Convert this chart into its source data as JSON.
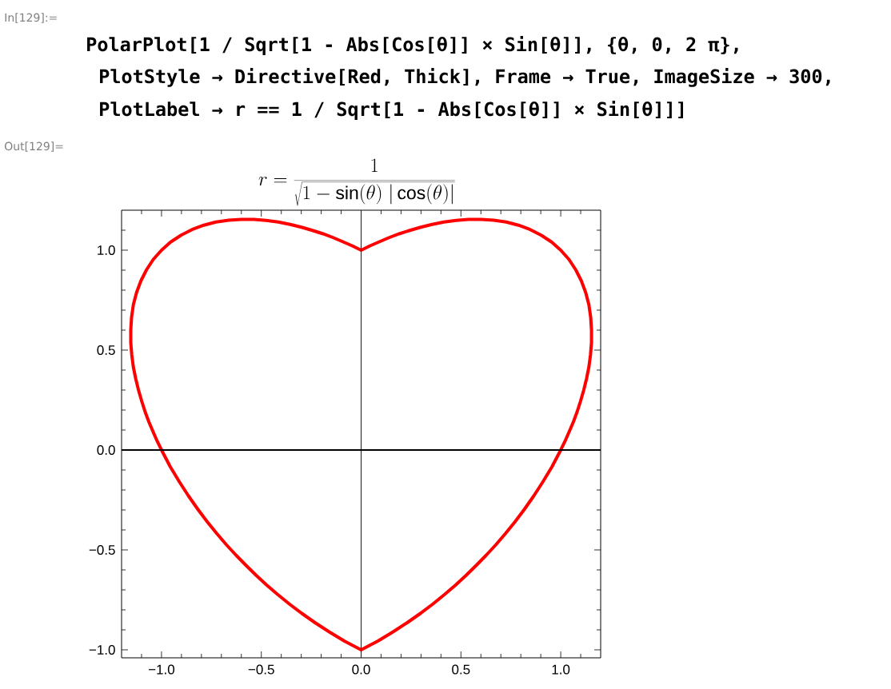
{
  "chart_data": {
    "type": "line",
    "title": "r = \\frac{1}{\\sqrt{1 - \\sin(\\theta)\\;|\\cos(\\theta)|}}",
    "annotations": [
      "In[129]:=",
      "PolarPlot[1 / Sqrt[1 - Abs[Cos[θ]] × Sin[θ]], {θ, 0, 2 π},",
      "PlotStyle → Directive[Red, Thick], Frame → True, ImageSize → 300,",
      "PlotLabel → r == 1 / Sqrt[1 - Abs[Cos[θ]] × Sin[θ]]]",
      "Out[129]="
    ],
    "series": [
      {
        "color": "#ff0000",
        "x": [
          1.0,
          1.022,
          1.042,
          1.063,
          1.082,
          1.099,
          1.115,
          1.129,
          1.141,
          1.149,
          1.154,
          1.154,
          1.15,
          1.141,
          1.125,
          1.103,
          1.075,
          1.041,
          1.0,
          0.954,
          0.902,
          0.847,
          0.788,
          0.727,
          0.664,
          0.601,
          0.538,
          0.476,
          0.415,
          0.356,
          0.299,
          0.244,
          0.191,
          0.14,
          0.091,
          0.045,
          0.0,
          -0.045,
          -0.091,
          -0.14,
          -0.191,
          -0.244,
          -0.299,
          -0.356,
          -0.415,
          -0.476,
          -0.538,
          -0.601,
          -0.664,
          -0.727,
          -0.788,
          -0.847,
          -0.902,
          -0.954,
          -1.0,
          -1.041,
          -1.075,
          -1.103,
          -1.125,
          -1.141,
          -1.15,
          -1.154,
          -1.154,
          -1.149,
          -1.141,
          -1.129,
          -1.115,
          -1.099,
          -1.082,
          -1.063,
          -1.042,
          -1.022,
          -1.0,
          -0.956,
          -0.91,
          -0.864,
          -0.817,
          -0.771,
          -0.723,
          -0.676,
          -0.627,
          -0.577,
          -0.526,
          -0.473,
          -0.418,
          -0.359,
          -0.298,
          -0.231,
          -0.16,
          -0.084,
          0.0,
          0.084,
          0.16,
          0.231,
          0.298,
          0.359,
          0.418,
          0.473,
          0.526,
          0.577,
          0.627,
          0.676,
          0.723,
          0.771,
          0.817,
          0.864,
          0.91,
          0.956,
          1.0,
          1.022
        ],
        "values": [
          0.0,
          0.045,
          0.091,
          0.14,
          0.191,
          0.244,
          0.299,
          0.356,
          0.415,
          0.476,
          0.538,
          0.601,
          0.664,
          0.727,
          0.788,
          0.847,
          0.902,
          0.954,
          1.0,
          1.041,
          1.075,
          1.103,
          1.125,
          1.141,
          1.15,
          1.154,
          1.154,
          1.149,
          1.141,
          1.129,
          1.115,
          1.099,
          1.082,
          1.063,
          1.042,
          1.022,
          1.0,
          1.022,
          1.042,
          1.063,
          1.082,
          1.099,
          1.115,
          1.129,
          1.141,
          1.149,
          1.154,
          1.154,
          1.15,
          1.141,
          1.125,
          1.103,
          1.075,
          1.041,
          1.0,
          0.954,
          0.902,
          0.847,
          0.788,
          0.727,
          0.664,
          0.601,
          0.538,
          0.476,
          0.415,
          0.356,
          0.299,
          0.244,
          0.191,
          0.14,
          0.091,
          0.045,
          0.0,
          -0.084,
          -0.16,
          -0.231,
          -0.298,
          -0.359,
          -0.418,
          -0.473,
          -0.526,
          -0.577,
          -0.627,
          -0.676,
          -0.723,
          -0.771,
          -0.817,
          -0.864,
          -0.91,
          -0.956,
          -1.0,
          -0.956,
          -0.91,
          -0.864,
          -0.817,
          -0.771,
          -0.723,
          -0.676,
          -0.627,
          -0.577,
          -0.526,
          -0.473,
          -0.418,
          -0.359,
          -0.298,
          -0.231,
          -0.16,
          -0.084,
          0.0,
          0.045
        ]
      }
    ],
    "line_style": "solid",
    "xlim": [
      -1.2,
      1.2
    ],
    "ylim": [
      -1.04,
      1.2
    ],
    "xticks": [
      {
        "value": -1.1,
        "label": null
      },
      {
        "value": -1.0,
        "label": "−1.0"
      },
      {
        "value": -0.9,
        "label": null
      },
      {
        "value": -0.8,
        "label": null
      },
      {
        "value": -0.7,
        "label": null
      },
      {
        "value": -0.6,
        "label": null
      },
      {
        "value": -0.5,
        "label": "−0.5"
      },
      {
        "value": -0.4,
        "label": null
      },
      {
        "value": -0.3,
        "label": null
      },
      {
        "value": -0.2,
        "label": null
      },
      {
        "value": -0.1,
        "label": null
      },
      {
        "value": 0,
        "label": "0.0"
      },
      {
        "value": 0.1,
        "label": null
      },
      {
        "value": 0.2,
        "label": null
      },
      {
        "value": 0.3,
        "label": null
      },
      {
        "value": 0.4,
        "label": null
      },
      0.5,
      {
        "value": 0.6,
        "label": null
      },
      {
        "value": 0.7,
        "label": null
      },
      {
        "value": 0.8,
        "label": null
      },
      {
        "value": 0.9,
        "label": null
      },
      {
        "value": 1.0,
        "label": "1.0"
      },
      {
        "value": 1.1,
        "label": null
      }
    ],
    "yticks": [
      {
        "value": -1.0,
        "label": "−1.0"
      },
      {
        "value": -0.9,
        "label": null
      },
      {
        "value": -0.8,
        "label": null
      },
      {
        "value": -0.7,
        "label": null
      },
      {
        "value": -0.6,
        "label": null
      },
      {
        "value": -0.5,
        "label": "−0.5"
      },
      {
        "value": -0.4,
        "label": null
      },
      {
        "value": -0.3,
        "label": null
      },
      {
        "value": -0.2,
        "label": null
      },
      {
        "value": -0.1,
        "label": null
      },
      {
        "value": 0,
        "label": "0.0"
      },
      {
        "value": 0.1,
        "label": null
      },
      {
        "value": 0.2,
        "label": null
      },
      {
        "value": 0.3,
        "label": null
      },
      {
        "value": 0.4,
        "label": null
      },
      0.5,
      {
        "value": 0.6,
        "label": null
      },
      {
        "value": 0.7,
        "label": null
      },
      {
        "value": 0.8,
        "label": null
      },
      {
        "value": 0.9,
        "label": null
      },
      {
        "value": 1.0,
        "label": "1.0"
      },
      {
        "value": 1.1,
        "label": null
      }
    ],
    "ref_lines": [
      {
        "axis": "x",
        "value": 0,
        "color": "#1a1a1a"
      },
      {
        "axis": "y",
        "value": 0,
        "color": "#000000"
      }
    ]
  }
}
